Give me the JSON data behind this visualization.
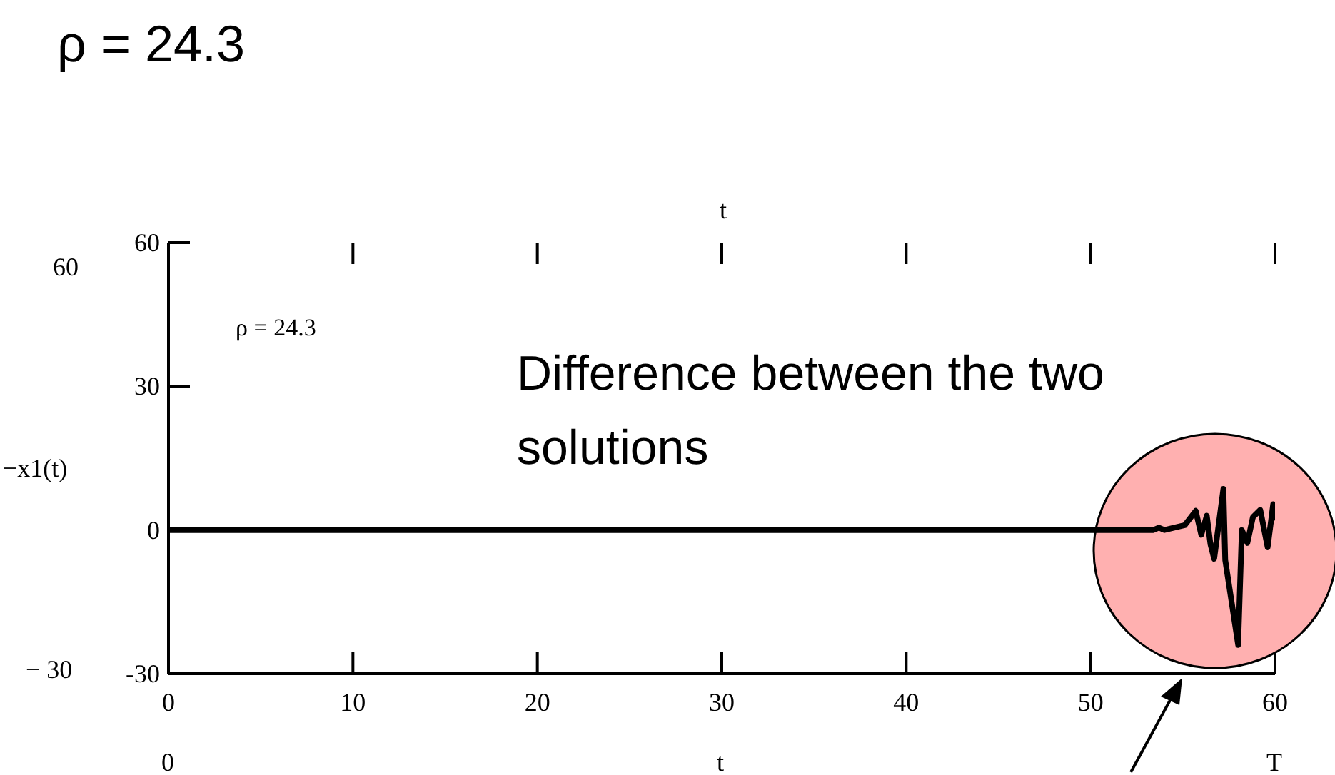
{
  "chart_data": {
    "type": "line",
    "title": "ρ = 24.3",
    "xlabel": "t",
    "ylabel": "−x1(t)",
    "x": [
      0,
      53.4,
      53.7,
      54.0,
      55.1,
      55.7,
      56.0,
      56.3,
      56.5,
      56.7,
      57.2,
      57.3,
      58.0,
      58.2,
      58.5,
      58.8,
      59.2,
      59.6,
      59.9,
      60
    ],
    "values": [
      0,
      0,
      0.5,
      0,
      1,
      4,
      -1,
      3,
      -3,
      -6,
      8.6,
      -6.3,
      -24,
      0,
      -2.7,
      2.7,
      4.2,
      -3.6,
      5.4,
      2
    ],
    "color": "#000000",
    "xlim": [
      0,
      60
    ],
    "ylim": [
      -30,
      60
    ],
    "xticks": [
      0,
      10,
      20,
      30,
      40,
      50,
      60
    ],
    "yticks": [
      -30,
      0,
      30,
      60
    ],
    "annotations": [
      "ρ = 24.3",
      "Difference between the two solutions",
      "t",
      "60",
      "− 30",
      "0",
      "T"
    ]
  }
}
